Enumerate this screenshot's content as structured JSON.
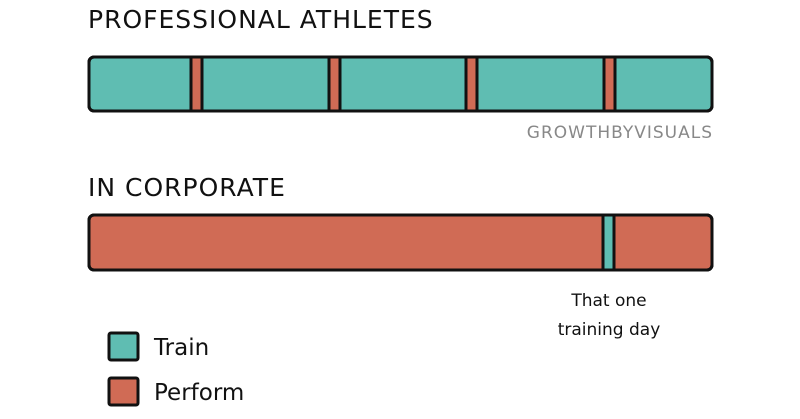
{
  "sections": [
    {
      "title": "PROFESSIONAL ATHLETES",
      "credit": "GROWTHBYVISUALS"
    },
    {
      "title": "IN CORPORATE",
      "annotation": [
        "That one",
        "training day"
      ]
    }
  ],
  "legend": [
    "Train",
    "Perform"
  ]
}
